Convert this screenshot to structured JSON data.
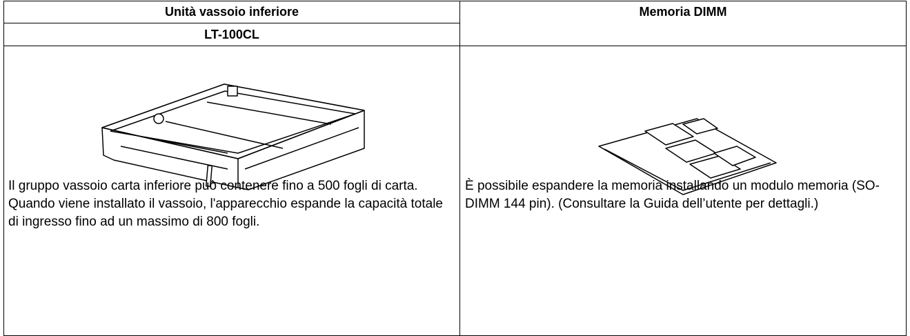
{
  "table": {
    "columns": [
      {
        "title": "Unità vassoio inferiore",
        "model": "LT-100CL",
        "description": "Il gruppo vassoio carta inferiore può contenere fino a 500 fogli di carta. Quando viene installato il vassoio, l'apparecchio espande la capacità totale di ingresso fino ad un massimo di 800 fogli."
      },
      {
        "title": "Memoria DIMM",
        "description": "È possibile espandere la memoria installando un modulo memoria (SO-DIMM 144 pin). (Consultare la Guida dell’utente per dettagli.)"
      }
    ]
  }
}
